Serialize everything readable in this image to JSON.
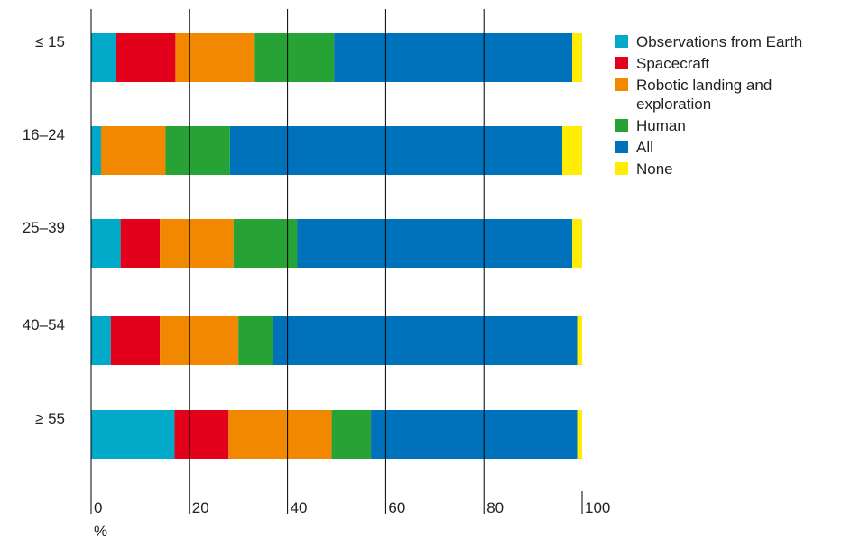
{
  "chart_data": {
    "type": "bar",
    "orientation": "horizontal",
    "stacked": true,
    "categories": [
      "≤ 15",
      "16–24",
      "25–39",
      "40–54",
      "≥ 55"
    ],
    "series": [
      {
        "name": "Observations from Earth",
        "color": "#00aac8",
        "values": [
          5,
          2,
          6,
          4,
          17
        ]
      },
      {
        "name": "Spacecraft",
        "color": "#e2001a",
        "values": [
          12,
          0,
          8,
          10,
          11
        ]
      },
      {
        "name": "Robotic landing and exploration",
        "color": "#f18800",
        "values": [
          16,
          13,
          15,
          16,
          21
        ]
      },
      {
        "name": "Human",
        "color": "#27a336",
        "values": [
          16,
          13,
          13,
          7,
          8
        ]
      },
      {
        "name": "All",
        "color": "#0071bb",
        "values": [
          48,
          67,
          56,
          62,
          42
        ]
      },
      {
        "name": "None",
        "color": "#ffec00",
        "values": [
          2,
          4,
          2,
          1,
          1
        ]
      }
    ],
    "xlim": [
      0,
      100
    ],
    "xticks": [
      "0",
      "20",
      "40",
      "60",
      "80",
      "100"
    ],
    "xlabel": "%",
    "grid": true,
    "legend_position": "right"
  }
}
